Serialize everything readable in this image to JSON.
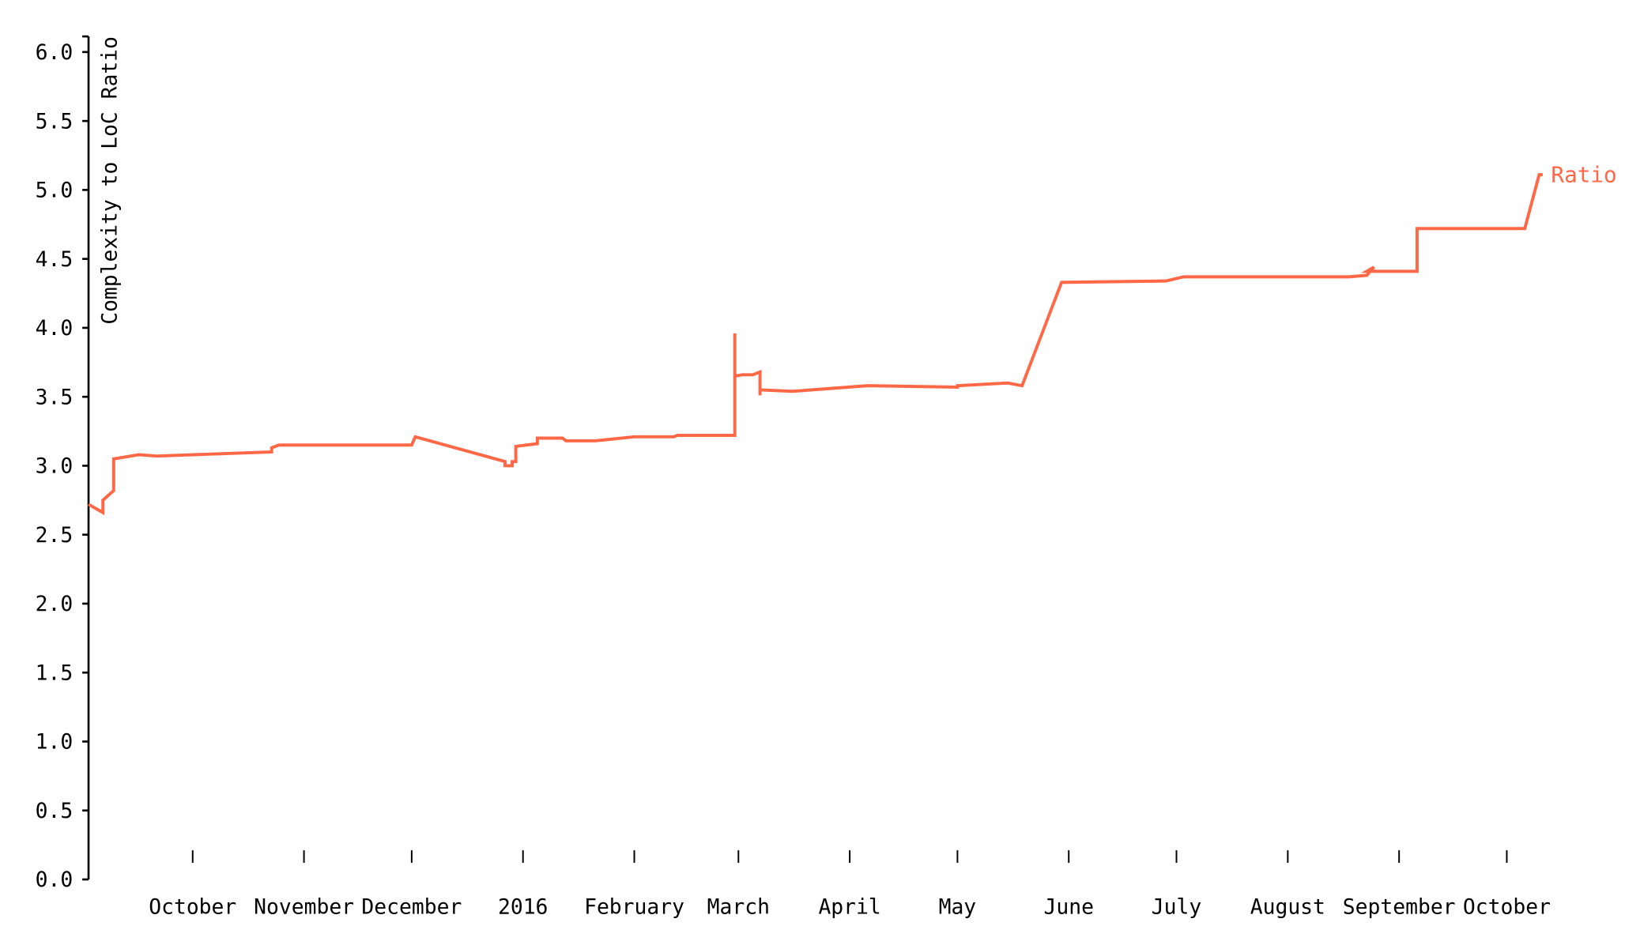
{
  "chart_data": {
    "type": "line",
    "title": "",
    "xlabel": "",
    "ylabel": "Complexity to LoC Ratio",
    "ylim": [
      0,
      6
    ],
    "xlim": [
      "2015-09-02",
      "2016-10-11"
    ],
    "grid": false,
    "y_ticks": [
      "0.0",
      "0.5",
      "1.0",
      "1.5",
      "2.0",
      "2.5",
      "3.0",
      "3.5",
      "4.0",
      "4.5",
      "5.0",
      "5.5",
      "6.0"
    ],
    "x_ticks": [
      {
        "date": "2015-10-01",
        "label": "October"
      },
      {
        "date": "2015-11-01",
        "label": "November"
      },
      {
        "date": "2015-12-01",
        "label": "December"
      },
      {
        "date": "2016-01-01",
        "label": "2016"
      },
      {
        "date": "2016-02-01",
        "label": "February"
      },
      {
        "date": "2016-03-01",
        "label": "March"
      },
      {
        "date": "2016-04-01",
        "label": "April"
      },
      {
        "date": "2016-05-01",
        "label": "May"
      },
      {
        "date": "2016-06-01",
        "label": "June"
      },
      {
        "date": "2016-07-01",
        "label": "July"
      },
      {
        "date": "2016-08-01",
        "label": "August"
      },
      {
        "date": "2016-09-01",
        "label": "September"
      },
      {
        "date": "2016-10-01",
        "label": "October"
      }
    ],
    "series": [
      {
        "name": "Ratio",
        "color": "#ff6847",
        "points": [
          [
            "2015-09-02",
            2.72
          ],
          [
            "2015-09-06",
            2.66
          ],
          [
            "2015-09-06",
            2.75
          ],
          [
            "2015-09-09",
            2.82
          ],
          [
            "2015-09-09",
            3.05
          ],
          [
            "2015-09-16",
            3.08
          ],
          [
            "2015-09-21",
            3.07
          ],
          [
            "2015-10-23",
            3.1
          ],
          [
            "2015-10-23",
            3.13
          ],
          [
            "2015-10-25",
            3.15
          ],
          [
            "2015-12-01",
            3.15
          ],
          [
            "2015-12-02",
            3.21
          ],
          [
            "2015-12-27",
            3.03
          ],
          [
            "2015-12-27",
            3.0
          ],
          [
            "2015-12-29",
            3.0
          ],
          [
            "2015-12-29",
            3.03
          ],
          [
            "2015-12-30",
            3.03
          ],
          [
            "2015-12-30",
            3.14
          ],
          [
            "2016-01-05",
            3.16
          ],
          [
            "2016-01-05",
            3.2
          ],
          [
            "2016-01-12",
            3.2
          ],
          [
            "2016-01-13",
            3.18
          ],
          [
            "2016-01-21",
            3.18
          ],
          [
            "2016-02-01",
            3.21
          ],
          [
            "2016-02-12",
            3.21
          ],
          [
            "2016-02-13",
            3.22
          ],
          [
            "2016-02-29",
            3.22
          ],
          [
            "2016-02-29",
            3.96
          ],
          [
            "2016-02-29",
            3.65
          ],
          [
            "2016-03-02",
            3.66
          ],
          [
            "2016-03-05",
            3.66
          ],
          [
            "2016-03-07",
            3.68
          ],
          [
            "2016-03-07",
            3.51
          ],
          [
            "2016-03-07",
            3.55
          ],
          [
            "2016-03-16",
            3.54
          ],
          [
            "2016-04-06",
            3.58
          ],
          [
            "2016-05-01",
            3.57
          ],
          [
            "2016-05-01",
            3.58
          ],
          [
            "2016-05-15",
            3.6
          ],
          [
            "2016-05-19",
            3.58
          ],
          [
            "2016-05-30",
            4.33
          ],
          [
            "2016-06-28",
            4.34
          ],
          [
            "2016-07-03",
            4.37
          ],
          [
            "2016-08-18",
            4.37
          ],
          [
            "2016-08-23",
            4.38
          ],
          [
            "2016-08-25",
            4.44
          ],
          [
            "2016-08-23",
            4.41
          ],
          [
            "2016-09-06",
            4.41
          ],
          [
            "2016-09-06",
            4.72
          ],
          [
            "2016-10-06",
            4.72
          ],
          [
            "2016-10-10",
            5.11
          ],
          [
            "2016-10-11",
            5.11
          ]
        ]
      }
    ]
  }
}
